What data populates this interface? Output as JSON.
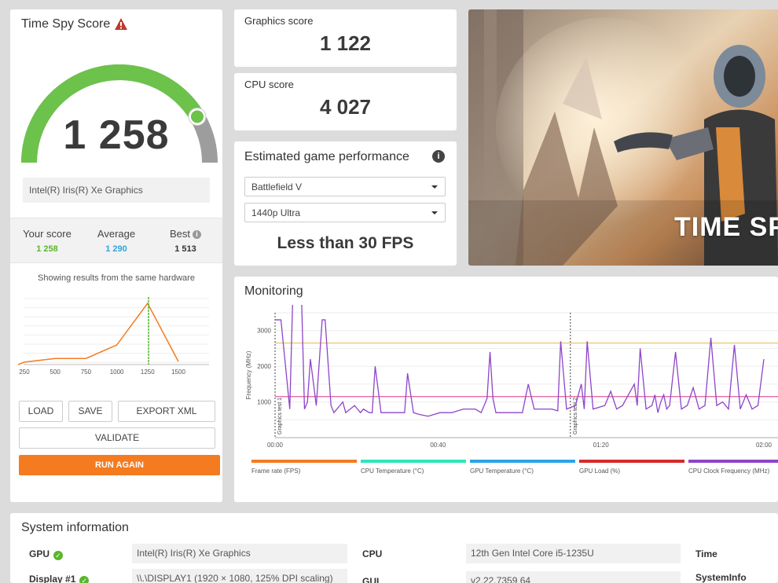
{
  "score_card": {
    "title": "Time Spy Score",
    "total_score": "1 258",
    "gpu_name": "Intel(R) Iris(R) Xe Graphics",
    "your_score_label": "Your score",
    "your_score": "1 258",
    "average_label": "Average",
    "average": "1 290",
    "best_label": "Best",
    "best": "1 513",
    "caption": "Showing results from the same hardware",
    "gauge_fraction": 0.83,
    "colors": {
      "gauge": "#6cc24a",
      "your": "#58b72a",
      "average": "#33a3dc",
      "run": "#f47b20"
    }
  },
  "distribution": {
    "x_ticks": [
      "250",
      "500",
      "750",
      "1000",
      "1250",
      "1500"
    ],
    "points": [
      [
        200,
        0
      ],
      [
        250,
        0.04
      ],
      [
        500,
        0.1
      ],
      [
        750,
        0.1
      ],
      [
        1000,
        0.32
      ],
      [
        1250,
        1.0
      ],
      [
        1500,
        0.05
      ]
    ],
    "marker_x": 1258
  },
  "actions": {
    "load": "LOAD",
    "save": "SAVE",
    "export": "EXPORT XML",
    "validate": "VALIDATE",
    "run": "RUN AGAIN"
  },
  "graphics": {
    "label": "Graphics score",
    "value": "1 122"
  },
  "cpu": {
    "label": "CPU score",
    "value": "4 027"
  },
  "estimate": {
    "title": "Estimated game performance",
    "game": "Battlefield V",
    "resolution": "1440p Ultra",
    "result": "Less than 30 FPS"
  },
  "banner": {
    "title": "TIME SPY"
  },
  "monitoring": {
    "title": "Monitoring",
    "y_label": "Frequency (MHz)",
    "y_ticks": [
      "1000",
      "2000",
      "3000"
    ],
    "x_ticks": [
      "00:00",
      "00:40",
      "01:20",
      "02:00"
    ],
    "markers": [
      "Graphics test 1",
      "Graphics test 2"
    ],
    "legend": [
      {
        "label": "Frame rate (FPS)",
        "color": "#f47b20"
      },
      {
        "label": "CPU Temperature (°C)",
        "color": "#2ee6b7"
      },
      {
        "label": "GPU Temperature (°C)",
        "color": "#2aa4e8"
      },
      {
        "label": "GPU Load (%)",
        "color": "#d62a2a"
      },
      {
        "label": "CPU Clock Frequency (MHz)",
        "color": "#8e44c9"
      }
    ]
  },
  "system_info": {
    "title": "System information",
    "gpu_label": "GPU",
    "gpu_value": "Intel(R) Iris(R) Xe Graphics",
    "display_label": "Display #1",
    "display_value": "\\\\.\\DISPLAY1 (1920 × 1080, 125% DPI scaling)",
    "cpu_label": "CPU",
    "cpu_value": "12th Gen Intel Core i5-1235U",
    "gui_label": "GUI",
    "gui_value": "v2.22.7359 64",
    "time_label": "Time",
    "systeminfo_label": "SystemInfo"
  }
}
